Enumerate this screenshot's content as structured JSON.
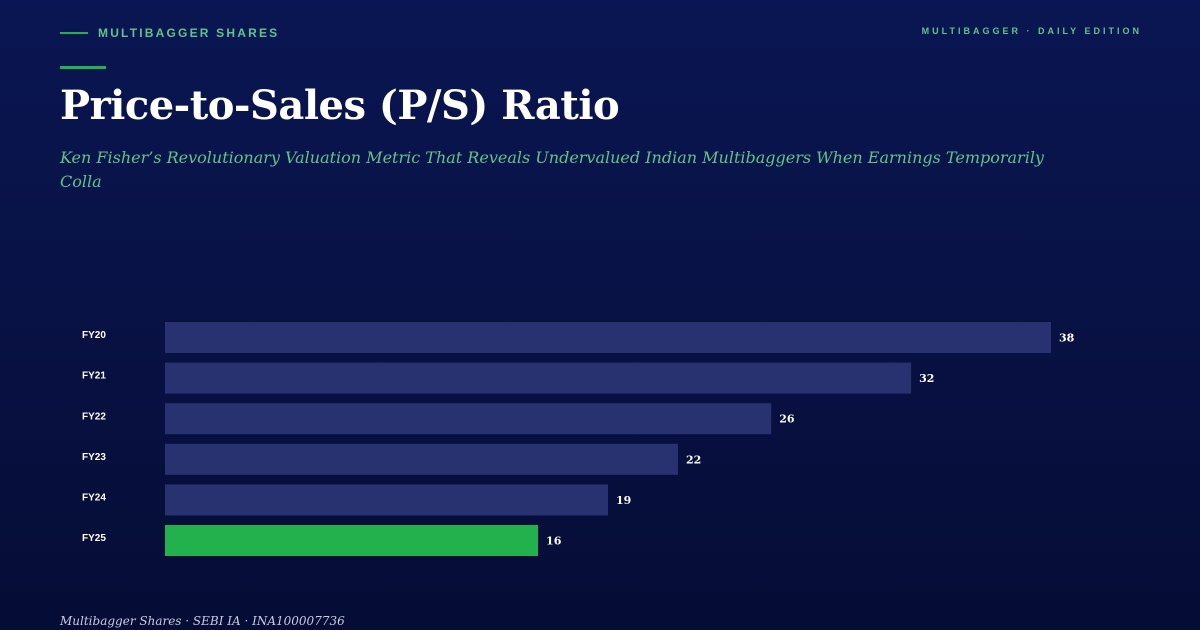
{
  "header": {
    "brand": "MULTIBAGGER SHARES",
    "edition": "MULTIBAGGER · DAILY EDITION",
    "title": "Price-to-Sales (P/S) Ratio",
    "subtitle": "Ken Fisher’s Revolutionary Valuation Metric That Reveals Undervalued Indian Multibaggers When Earnings Temporarily Colla"
  },
  "footer": {
    "text": "Multibagger Shares · SEBI IA · INA100007736"
  },
  "colors": {
    "bar": "#283270",
    "highlight_bar": "#22b14c",
    "label": "#ffffff"
  },
  "chart_data": {
    "type": "bar",
    "orientation": "horizontal",
    "categories": [
      "FY20",
      "FY21",
      "FY22",
      "FY23",
      "FY24",
      "FY25"
    ],
    "values": [
      38,
      32,
      26,
      22,
      19,
      16
    ],
    "data_labels": [
      "38",
      "32",
      "26",
      "22",
      "19",
      "16"
    ],
    "highlight": "FY25",
    "grid": false,
    "legend": "none",
    "xlim": [
      0,
      38
    ]
  }
}
